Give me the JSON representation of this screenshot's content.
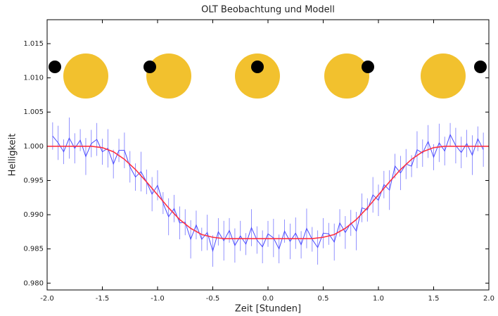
{
  "chart_data": {
    "type": "line",
    "title": "OLT Beobachtung und Modell",
    "x_label": "Zeit [Stunden]",
    "y_label": "Helligkeit",
    "xlim": [
      -2,
      2
    ],
    "xticks": [
      {
        "value": -2,
        "label": "-2.0"
      },
      -1.5,
      {
        "value": -1,
        "label": "-1.0"
      },
      -0.5,
      {
        "value": 0,
        "label": "0.0"
      },
      0.5,
      {
        "value": 1,
        "label": "1.0"
      },
      1.5,
      {
        "value": 2,
        "label": "2.0"
      }
    ],
    "ylim": [
      0.979,
      1.0185
    ],
    "yticks": [
      {
        "value": 0.98,
        "label": "0.980"
      },
      0.985,
      {
        "value": 0.99,
        "label": "0.990"
      },
      0.995,
      {
        "value": 1.0,
        "label": "1.000"
      },
      1.005,
      {
        "value": 1.01,
        "label": "1.010"
      },
      1.015
    ],
    "series": [
      {
        "color": "#4a4aff",
        "x": [
          -1.95,
          -1.9,
          -1.85,
          -1.8,
          -1.75,
          -1.7,
          -1.65,
          -1.6,
          -1.55,
          -1.5,
          -1.45,
          -1.4,
          -1.35,
          -1.3,
          -1.25,
          -1.2,
          -1.15,
          -1.1,
          -1.05,
          -1.0,
          -0.95,
          -0.9,
          -0.85,
          -0.8,
          -0.75,
          -0.7,
          -0.65,
          -0.6,
          -0.55,
          -0.5,
          -0.45,
          -0.4,
          -0.35,
          -0.3,
          -0.25,
          -0.2,
          -0.15,
          -0.1,
          -0.05,
          0.0,
          0.05,
          0.1,
          0.15,
          0.2,
          0.25,
          0.3,
          0.35,
          0.4,
          0.45,
          0.5,
          0.55,
          0.6,
          0.65,
          0.7,
          0.75,
          0.8,
          0.85,
          0.9,
          0.95,
          1.0,
          1.05,
          1.1,
          1.15,
          1.2,
          1.25,
          1.3,
          1.35,
          1.4,
          1.45,
          1.5,
          1.55,
          1.6,
          1.65,
          1.7,
          1.75,
          1.8,
          1.85,
          1.9,
          1.95
        ],
        "values": [
          1.0015,
          1.0005,
          0.9992,
          1.0012,
          0.9997,
          1.0009,
          0.9985,
          1.0004,
          1.001,
          0.9992,
          0.9997,
          0.9974,
          0.9994,
          0.9994,
          0.997,
          0.9955,
          0.9963,
          0.9948,
          0.993,
          0.9943,
          0.9917,
          0.9897,
          0.9909,
          0.9888,
          0.9889,
          0.9864,
          0.9885,
          0.9864,
          0.9874,
          0.9847,
          0.9875,
          0.9862,
          0.9877,
          0.9855,
          0.9869,
          0.9857,
          0.9881,
          0.9863,
          0.9853,
          0.9872,
          0.9866,
          0.985,
          0.9876,
          0.9861,
          0.9873,
          0.9856,
          0.988,
          0.9864,
          0.9852,
          0.9873,
          0.9872,
          0.986,
          0.9888,
          0.9874,
          0.9888,
          0.9876,
          0.991,
          0.9907,
          0.9929,
          0.9921,
          0.9944,
          0.9936,
          0.9971,
          0.9961,
          0.9974,
          0.9971,
          0.9995,
          0.999,
          1.0007,
          0.9984,
          1.0005,
          0.9993,
          1.0017,
          1.0001,
          0.9991,
          1.0004,
          0.9987,
          1.0011,
          0.9995
        ],
        "errors": [
          0.002,
          0.0025,
          0.0018,
          0.003,
          0.0022,
          0.0016,
          0.0027,
          0.002,
          0.0024,
          0.0019,
          0.0028,
          0.0021,
          0.0017,
          0.0026,
          0.0023,
          0.002,
          0.0029,
          0.0018,
          0.0025,
          0.0022,
          0.0016,
          0.0027,
          0.002,
          0.0024,
          0.0019,
          0.0028,
          0.0021,
          0.0017,
          0.0026,
          0.0023,
          0.002,
          0.0029,
          0.0018,
          0.0025,
          0.0022,
          0.0016,
          0.0027,
          0.002,
          0.0024,
          0.0019,
          0.0028,
          0.0021,
          0.0017,
          0.0026,
          0.0023,
          0.002,
          0.0029,
          0.0018,
          0.0025,
          0.0022,
          0.0016,
          0.0027,
          0.002,
          0.0024,
          0.0019,
          0.0028,
          0.0021,
          0.0017,
          0.0026,
          0.0023,
          0.002,
          0.0029,
          0.0018,
          0.0025,
          0.0022,
          0.0016,
          0.0027,
          0.002,
          0.0024,
          0.0019,
          0.0028,
          0.0021,
          0.0017,
          0.0026,
          0.0023,
          0.002,
          0.0029,
          0.0018,
          0.0025
        ]
      },
      {
        "color": "#ff3040",
        "x": [
          -2.0,
          -1.9,
          -1.8,
          -1.7,
          -1.6,
          -1.5,
          -1.4,
          -1.3,
          -1.2,
          -1.1,
          -1.0,
          -0.9,
          -0.8,
          -0.7,
          -0.6,
          -0.5,
          -0.4,
          -0.3,
          -0.2,
          -0.1,
          0.0,
          0.1,
          0.2,
          0.3,
          0.4,
          0.5,
          0.6,
          0.7,
          0.8,
          0.9,
          1.0,
          1.1,
          1.2,
          1.3,
          1.4,
          1.5,
          1.6,
          1.7,
          1.8,
          1.9,
          2.0
        ],
        "values": [
          1.0,
          1.0,
          1.0,
          1.0,
          1.0,
          0.9998,
          0.9992,
          0.9981,
          0.9966,
          0.9948,
          0.9929,
          0.991,
          0.9893,
          0.988,
          0.9871,
          0.9867,
          0.9865,
          0.9865,
          0.9865,
          0.9865,
          0.9865,
          0.9865,
          0.9865,
          0.9865,
          0.9865,
          0.9867,
          0.9871,
          0.988,
          0.9893,
          0.991,
          0.9929,
          0.9948,
          0.9966,
          0.9981,
          0.9992,
          0.9998,
          1.0,
          1.0,
          1.0,
          1.0,
          1.0
        ]
      }
    ]
  }
}
